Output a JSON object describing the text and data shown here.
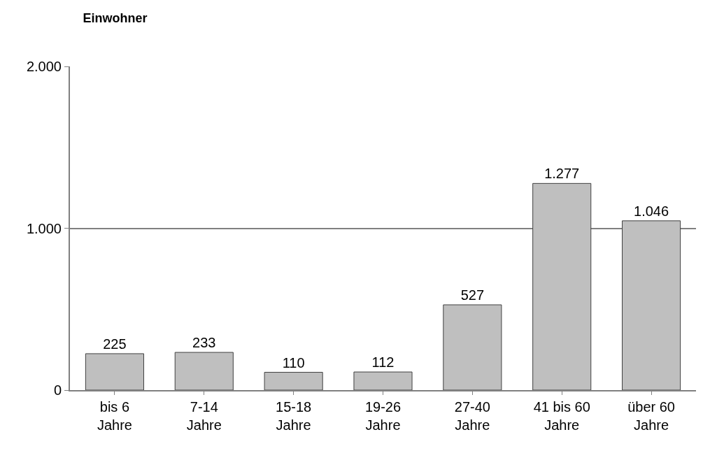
{
  "chart_data": {
    "type": "bar",
    "title": "Einwohner",
    "categories": [
      "bis 6 Jahre",
      "7-14 Jahre",
      "15-18 Jahre",
      "19-26 Jahre",
      "27-40 Jahre",
      "41 bis 60 Jahre",
      "über 60 Jahre"
    ],
    "values": [
      225,
      233,
      110,
      112,
      527,
      1277,
      1046
    ],
    "value_labels": [
      "225",
      "233",
      "110",
      "112",
      "527",
      "1.277",
      "1.046"
    ],
    "color": "#bfbfbf",
    "ylim": [
      0,
      2000
    ],
    "yticks": [
      0,
      {
        "value": 1000,
        "label": "1.000"
      },
      {
        "value": 2000,
        "label": "2.000"
      }
    ],
    "grid": "y"
  }
}
